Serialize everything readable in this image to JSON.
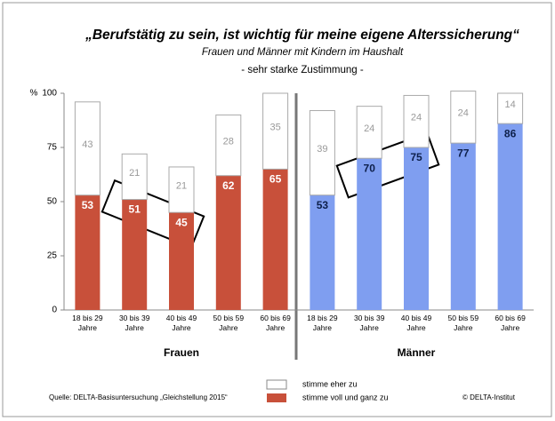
{
  "chart_data": {
    "type": "bar",
    "stacked": true,
    "title": "„Berufstätig zu sein, ist wichtig für meine eigene Alterssicherung“",
    "subtitle": "Frauen und Männer mit Kindern im Haushalt",
    "subtitle2": "- sehr starke Zustimmung -",
    "ylabel": "%",
    "ylim": [
      0,
      100
    ],
    "yticks": [
      0,
      25,
      50,
      75,
      100
    ],
    "groups": [
      {
        "name": "Frauen",
        "color": "#c8503a",
        "label_color": "#ffffff",
        "categories": [
          "18 bis 29 Jahre",
          "30 bis 39 Jahre",
          "40 bis 49 Jahre",
          "50 bis 59 Jahre",
          "60 bis 69 Jahre"
        ],
        "series": [
          {
            "name": "stimme voll und ganz zu",
            "values": [
              53,
              51,
              45,
              62,
              65
            ]
          },
          {
            "name": "stimme eher zu",
            "values": [
              43,
              21,
              21,
              28,
              35
            ]
          }
        ]
      },
      {
        "name": "Männer",
        "color": "#7f9ef0",
        "label_color": "#0d1f4a",
        "categories": [
          "18 bis 29 Jahre",
          "30 bis 39 Jahre",
          "40 bis 49 Jahre",
          "50 bis 59 Jahre",
          "60 bis 69 Jahre"
        ],
        "series": [
          {
            "name": "stimme voll und ganz zu",
            "values": [
              53,
              70,
              75,
              77,
              86
            ]
          },
          {
            "name": "stimme eher zu",
            "values": [
              39,
              24,
              24,
              24,
              14
            ]
          }
        ]
      }
    ],
    "legend": [
      {
        "name": "stimme eher zu",
        "color": "#ffffff"
      },
      {
        "name": "stimme voll und ganz zu",
        "color": "#c8503a"
      }
    ],
    "source": "Quelle: DELTA-Basisuntersuchung „Gleichstellung 2015“",
    "credit": "© DELTA-Institut"
  }
}
